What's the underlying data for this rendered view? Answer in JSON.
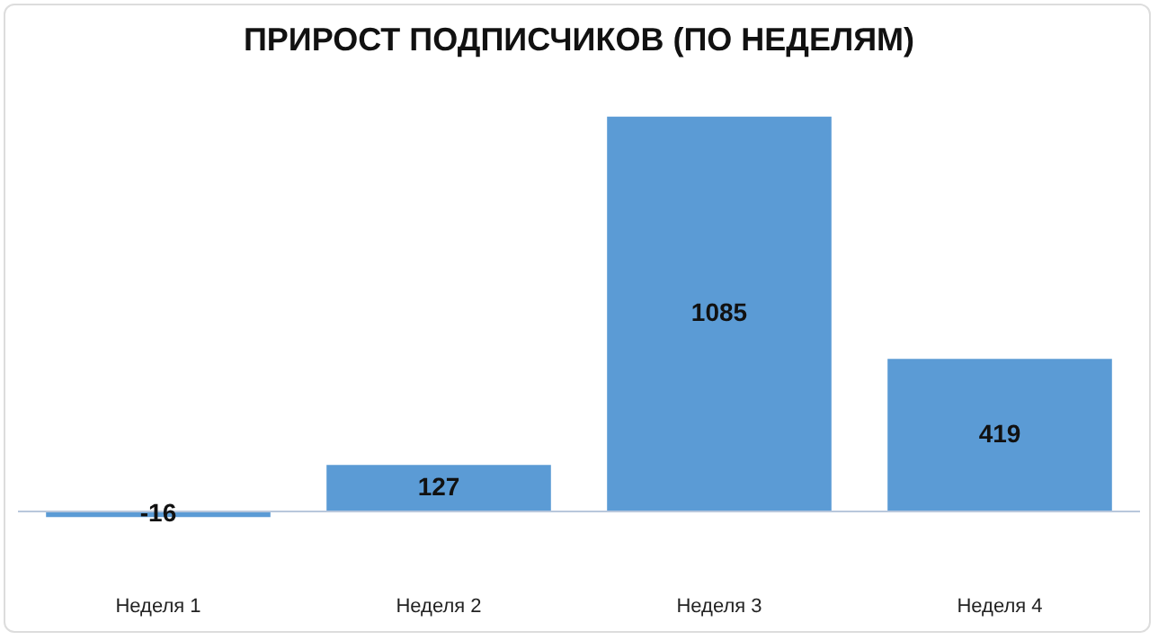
{
  "chart_data": {
    "type": "bar",
    "title": "ПРИРОСТ ПОДПИСЧИКОВ (ПО НЕДЕЛЯМ)",
    "categories": [
      "Неделя 1",
      "Неделя 2",
      "Неделя 3",
      "Неделя 4"
    ],
    "values": [
      -16,
      127,
      1085,
      419
    ],
    "color": "#5b9bd5",
    "data_labels": true,
    "grid": false,
    "legend": false
  }
}
